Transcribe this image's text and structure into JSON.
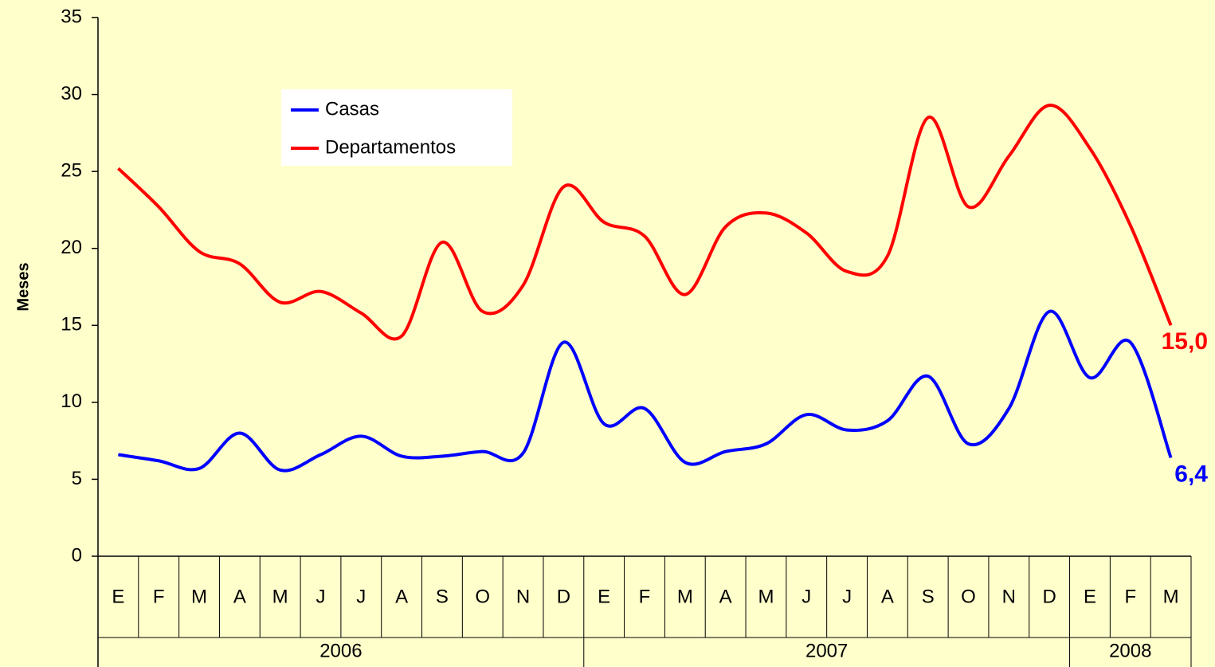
{
  "chart_data": {
    "type": "line",
    "y_label": "Meses",
    "categories": [
      "E",
      "F",
      "M",
      "A",
      "M",
      "J",
      "J",
      "A",
      "S",
      "O",
      "N",
      "D",
      "E",
      "F",
      "M",
      "A",
      "M",
      "J",
      "J",
      "A",
      "S",
      "O",
      "N",
      "D",
      "E",
      "F",
      "M"
    ],
    "groups": [
      {
        "label": "2006",
        "span": 12
      },
      {
        "label": "2007",
        "span": 12
      },
      {
        "label": "2008",
        "span": 3
      }
    ],
    "series": [
      {
        "name": "Casas",
        "color": "#0000ff",
        "values": [
          6.6,
          6.2,
          5.7,
          8.0,
          5.6,
          6.6,
          7.8,
          6.5,
          6.5,
          6.8,
          6.7,
          13.9,
          8.6,
          9.6,
          6.1,
          6.8,
          7.3,
          9.2,
          8.2,
          8.8,
          11.7,
          7.3,
          9.6,
          15.9,
          11.6,
          13.9,
          6.4
        ],
        "value_labels": [
          null,
          null,
          null,
          null,
          null,
          null,
          null,
          null,
          null,
          null,
          null,
          null,
          null,
          null,
          null,
          null,
          null,
          null,
          null,
          null,
          null,
          null,
          null,
          null,
          null,
          null,
          "6,4"
        ]
      },
      {
        "name": "Departamentos",
        "color": "#ff0000",
        "values": [
          25.2,
          22.7,
          19.8,
          19.0,
          16.5,
          17.2,
          15.8,
          14.3,
          20.4,
          15.9,
          17.6,
          24.0,
          21.7,
          20.8,
          17.0,
          21.4,
          22.3,
          21.0,
          18.5,
          19.5,
          28.5,
          22.7,
          26.0,
          29.3,
          26.5,
          21.5,
          15.0
        ],
        "value_labels": [
          null,
          null,
          null,
          null,
          null,
          null,
          null,
          null,
          null,
          null,
          null,
          null,
          null,
          null,
          null,
          null,
          null,
          null,
          null,
          null,
          null,
          null,
          null,
          null,
          null,
          null,
          "15,0"
        ]
      }
    ],
    "ylim": [
      0,
      35
    ],
    "yticks": [
      0,
      5,
      10,
      15,
      20,
      25,
      30,
      35
    ],
    "grid": false
  }
}
